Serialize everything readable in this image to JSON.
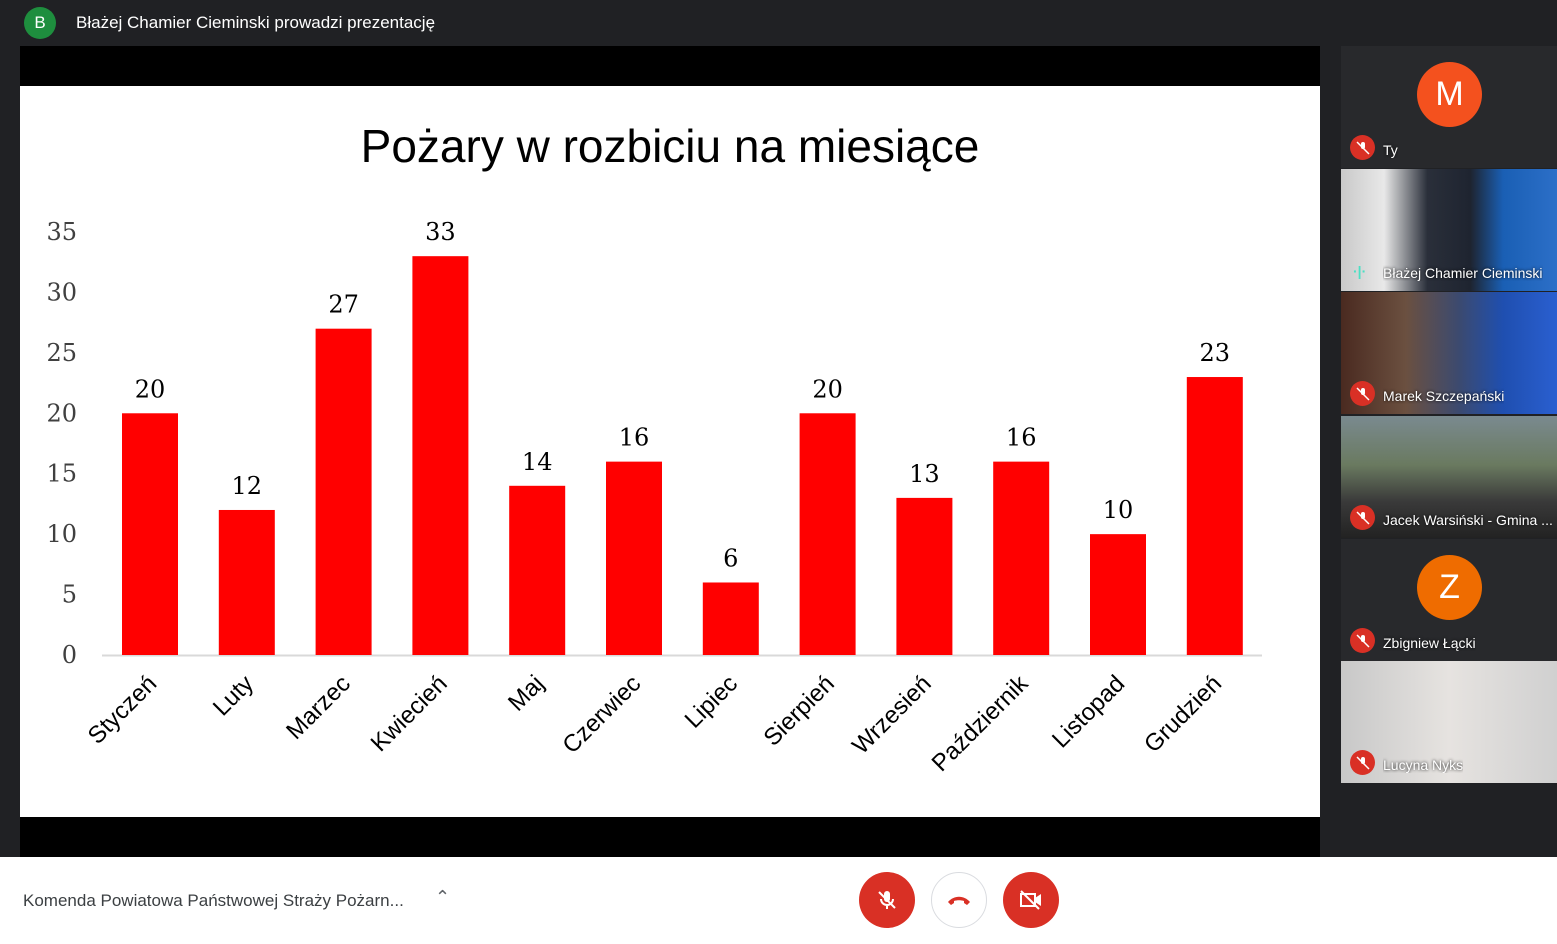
{
  "header": {
    "avatar_letter": "B",
    "title": "Błażej Chamier Cieminski prowadzi prezentację"
  },
  "participants": [
    {
      "name": "Ty",
      "avatar": "M",
      "avatar_color": "#f4511e",
      "muted": true
    },
    {
      "name": "Błażej Chamier Cieminski",
      "speaking": true
    },
    {
      "name": "Marek Szczepański",
      "muted": true
    },
    {
      "name": "Jacek Warsiński - Gmina ...",
      "muted": true
    },
    {
      "name": "Zbigniew Łącki",
      "avatar": "Z",
      "avatar_color": "#ef6c00",
      "muted": true
    },
    {
      "name": "Lucyna Nyks",
      "muted": true
    }
  ],
  "footer": {
    "meeting_name": "Komenda Powiatowa Państwowej Straży Pożarn...",
    "caret": "^"
  },
  "colors": {
    "bar": "#ff0000",
    "danger": "#d93025"
  },
  "chart_data": {
    "type": "bar",
    "title": "Pożary w rozbiciu na miesiące",
    "categories": [
      "Styczeń",
      "Luty",
      "Marzec",
      "Kwiecień",
      "Maj",
      "Czerwiec",
      "Lipiec",
      "Sierpień",
      "Wrzesień",
      "Październik",
      "Listopad",
      "Grudzień"
    ],
    "values": [
      20,
      12,
      27,
      33,
      14,
      16,
      6,
      20,
      13,
      16,
      10,
      23
    ],
    "yticks": [
      "0",
      "5",
      "10",
      "15",
      "20",
      "25",
      "30",
      "35"
    ],
    "ylim": [
      0,
      35
    ],
    "xlabel": "",
    "ylabel": "",
    "grid": false,
    "legend": "none"
  }
}
